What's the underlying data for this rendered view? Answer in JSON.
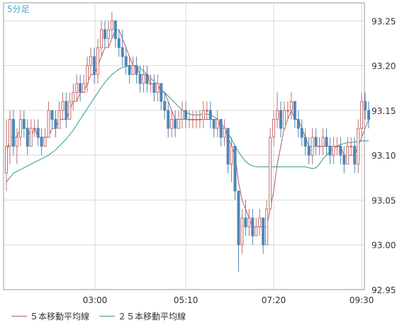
{
  "chart_data": {
    "type": "candlestick",
    "interval_label": "5分足",
    "x_tick_labels": [
      "03:00",
      "05:10",
      "07:20",
      "09:30"
    ],
    "y_tick_labels": [
      "93.25",
      "93.20",
      "93.15",
      "93.10",
      "93.05",
      "93.00",
      "92.95"
    ],
    "ylim": [
      92.95,
      93.27
    ],
    "grid": true,
    "legend_position": "bottom-left",
    "colors": {
      "up": "#c76d6d",
      "down": "#4f86b8",
      "ma5": "#b35d5d",
      "ma25": "#2f9c84",
      "grid": "#d9d9d9",
      "frame": "#9a9a9a",
      "label": "#333333",
      "interval": "#46a6c8"
    },
    "candles": [
      [
        93.08,
        93.14,
        93.06,
        93.11
      ],
      [
        93.11,
        93.15,
        93.09,
        93.14
      ],
      [
        93.14,
        93.15,
        93.1,
        93.11
      ],
      [
        93.11,
        93.13,
        93.09,
        93.12
      ],
      [
        93.12,
        93.15,
        93.11,
        93.14
      ],
      [
        93.14,
        93.15,
        93.12,
        93.13
      ],
      [
        93.13,
        93.14,
        93.1,
        93.11
      ],
      [
        93.11,
        93.14,
        93.11,
        93.13
      ],
      [
        93.13,
        93.14,
        93.12,
        93.13
      ],
      [
        93.13,
        93.14,
        93.11,
        93.12
      ],
      [
        93.12,
        93.13,
        93.1,
        93.11
      ],
      [
        93.11,
        93.13,
        93.11,
        93.12
      ],
      [
        93.12,
        93.16,
        93.12,
        93.15
      ],
      [
        93.15,
        93.15,
        93.13,
        93.14
      ],
      [
        93.14,
        93.15,
        93.12,
        93.13
      ],
      [
        93.13,
        93.16,
        93.13,
        93.15
      ],
      [
        93.15,
        93.17,
        93.14,
        93.16
      ],
      [
        93.16,
        93.17,
        93.13,
        93.14
      ],
      [
        93.14,
        93.17,
        93.14,
        93.16
      ],
      [
        93.16,
        93.18,
        93.15,
        93.17
      ],
      [
        93.17,
        93.19,
        93.16,
        93.18
      ],
      [
        93.18,
        93.19,
        93.16,
        93.17
      ],
      [
        93.17,
        93.19,
        93.17,
        93.18
      ],
      [
        93.18,
        93.21,
        93.17,
        93.2
      ],
      [
        93.2,
        93.22,
        93.19,
        93.21
      ],
      [
        93.21,
        93.22,
        93.18,
        93.19
      ],
      [
        93.19,
        93.23,
        93.18,
        93.22
      ],
      [
        93.22,
        93.25,
        93.21,
        93.24
      ],
      [
        93.24,
        93.25,
        93.22,
        93.23
      ],
      [
        93.23,
        93.25,
        93.22,
        93.24
      ],
      [
        93.24,
        93.26,
        93.23,
        93.25
      ],
      [
        93.25,
        93.25,
        93.22,
        93.23
      ],
      [
        93.23,
        93.24,
        93.21,
        93.22
      ],
      [
        93.22,
        93.24,
        93.2,
        93.21
      ],
      [
        93.21,
        93.22,
        93.19,
        93.2
      ],
      [
        93.2,
        93.21,
        93.18,
        93.19
      ],
      [
        93.19,
        93.21,
        93.19,
        93.2
      ],
      [
        93.2,
        93.21,
        93.18,
        93.19
      ],
      [
        93.19,
        93.2,
        93.17,
        93.18
      ],
      [
        93.18,
        93.2,
        93.17,
        93.19
      ],
      [
        93.19,
        93.2,
        93.17,
        93.18
      ],
      [
        93.18,
        93.19,
        93.17,
        93.18
      ],
      [
        93.18,
        93.19,
        93.16,
        93.17
      ],
      [
        93.17,
        93.19,
        93.16,
        93.18
      ],
      [
        93.18,
        93.18,
        93.15,
        93.16
      ],
      [
        93.16,
        93.17,
        93.14,
        93.15
      ],
      [
        93.15,
        93.16,
        93.12,
        93.13
      ],
      [
        93.13,
        93.15,
        93.12,
        93.14
      ],
      [
        93.14,
        93.15,
        93.12,
        93.13
      ],
      [
        93.13,
        93.15,
        93.13,
        93.14
      ],
      [
        93.14,
        93.16,
        93.13,
        93.15
      ],
      [
        93.15,
        93.16,
        93.13,
        93.14
      ],
      [
        93.14,
        93.15,
        93.13,
        93.14
      ],
      [
        93.14,
        93.15,
        93.13,
        93.14
      ],
      [
        93.14,
        93.15,
        93.13,
        93.14
      ],
      [
        93.14,
        93.15,
        93.13,
        93.14
      ],
      [
        93.14,
        93.16,
        93.13,
        93.15
      ],
      [
        93.15,
        93.16,
        93.14,
        93.15
      ],
      [
        93.15,
        93.16,
        93.13,
        93.14
      ],
      [
        93.14,
        93.14,
        93.12,
        93.13
      ],
      [
        93.13,
        93.15,
        93.12,
        93.14
      ],
      [
        93.14,
        93.14,
        93.11,
        93.12
      ],
      [
        93.12,
        93.14,
        93.11,
        93.13
      ],
      [
        93.13,
        93.13,
        93.08,
        93.09
      ],
      [
        93.09,
        93.12,
        93.07,
        93.11
      ],
      [
        93.11,
        93.11,
        93.05,
        93.06
      ],
      [
        93.06,
        93.06,
        92.97,
        93.0
      ],
      [
        93.0,
        93.04,
        92.99,
        93.03
      ],
      [
        93.03,
        93.05,
        93.01,
        93.02
      ],
      [
        93.02,
        93.04,
        93.01,
        93.03
      ],
      [
        93.03,
        93.04,
        93.0,
        93.01
      ],
      [
        93.01,
        93.03,
        93.01,
        93.02
      ],
      [
        93.02,
        93.04,
        93.01,
        93.03
      ],
      [
        93.03,
        93.03,
        92.99,
        93.0
      ],
      [
        93.0,
        93.05,
        93.0,
        93.04
      ],
      [
        93.04,
        93.13,
        93.04,
        93.12
      ],
      [
        93.12,
        93.15,
        93.11,
        93.14
      ],
      [
        93.14,
        93.17,
        93.13,
        93.15
      ],
      [
        93.15,
        93.16,
        93.12,
        93.13
      ],
      [
        93.13,
        93.16,
        93.13,
        93.15
      ],
      [
        93.15,
        93.16,
        93.14,
        93.15
      ],
      [
        93.15,
        93.17,
        93.14,
        93.16
      ],
      [
        93.16,
        93.16,
        93.13,
        93.14
      ],
      [
        93.14,
        93.15,
        93.12,
        93.13
      ],
      [
        93.13,
        93.14,
        93.11,
        93.12
      ],
      [
        93.12,
        93.13,
        93.1,
        93.11
      ],
      [
        93.11,
        93.12,
        93.09,
        93.1
      ],
      [
        93.1,
        93.13,
        93.09,
        93.12
      ],
      [
        93.12,
        93.13,
        93.1,
        93.11
      ],
      [
        93.11,
        93.12,
        93.1,
        93.11
      ],
      [
        93.11,
        93.13,
        93.1,
        93.12
      ],
      [
        93.12,
        93.13,
        93.1,
        93.11
      ],
      [
        93.11,
        93.12,
        93.09,
        93.1
      ],
      [
        93.1,
        93.12,
        93.09,
        93.11
      ],
      [
        93.11,
        93.12,
        93.1,
        93.11
      ],
      [
        93.11,
        93.12,
        93.09,
        93.1
      ],
      [
        93.1,
        93.11,
        93.08,
        93.09
      ],
      [
        93.09,
        93.12,
        93.09,
        93.11
      ],
      [
        93.11,
        93.12,
        93.1,
        93.11
      ],
      [
        93.11,
        93.12,
        93.08,
        93.09
      ],
      [
        93.09,
        93.14,
        93.08,
        93.13
      ],
      [
        93.13,
        93.17,
        93.12,
        93.16
      ],
      [
        93.16,
        93.17,
        93.14,
        93.15
      ],
      [
        93.15,
        93.16,
        93.13,
        93.14
      ]
    ],
    "ma5": [
      93.1,
      93.12,
      93.12,
      93.12,
      93.13,
      93.13,
      93.13,
      93.12,
      93.13,
      93.12,
      93.12,
      93.12,
      93.12,
      93.13,
      93.13,
      93.14,
      93.14,
      93.14,
      93.15,
      93.16,
      93.16,
      93.17,
      93.17,
      93.18,
      93.19,
      93.19,
      93.2,
      93.21,
      93.22,
      93.22,
      93.23,
      93.24,
      93.24,
      93.23,
      93.22,
      93.21,
      93.2,
      93.2,
      93.19,
      93.19,
      93.19,
      93.18,
      93.18,
      93.18,
      93.17,
      93.17,
      93.16,
      93.15,
      93.14,
      93.14,
      93.14,
      93.14,
      93.14,
      93.14,
      93.14,
      93.14,
      93.14,
      93.14,
      93.14,
      93.14,
      93.14,
      93.13,
      93.13,
      93.12,
      93.11,
      93.1,
      93.07,
      93.05,
      93.04,
      93.03,
      93.02,
      93.02,
      93.02,
      93.02,
      93.02,
      93.04,
      93.06,
      93.09,
      93.11,
      93.13,
      93.14,
      93.15,
      93.14,
      93.14,
      93.13,
      93.12,
      93.11,
      93.11,
      93.11,
      93.11,
      93.11,
      93.11,
      93.11,
      93.11,
      93.11,
      93.11,
      93.1,
      93.1,
      93.1,
      93.1,
      93.11,
      93.12,
      93.13,
      93.14
    ],
    "ma25": [
      93.07,
      93.075,
      93.08,
      93.082,
      93.084,
      93.086,
      93.088,
      93.09,
      93.092,
      93.094,
      93.096,
      93.098,
      93.1,
      93.103,
      93.106,
      93.11,
      93.114,
      93.118,
      93.123,
      93.128,
      93.134,
      93.14,
      93.146,
      93.152,
      93.158,
      93.164,
      93.17,
      93.176,
      93.181,
      93.186,
      93.19,
      93.193,
      93.196,
      93.198,
      93.199,
      93.2,
      93.2,
      93.199,
      93.197,
      93.194,
      93.19,
      93.186,
      93.182,
      93.178,
      93.174,
      93.17,
      93.166,
      93.162,
      93.158,
      93.154,
      93.15,
      93.148,
      93.146,
      93.145,
      93.145,
      93.145,
      93.146,
      93.146,
      93.145,
      93.143,
      93.14,
      93.136,
      93.13,
      93.124,
      93.118,
      93.11,
      93.104,
      93.098,
      93.093,
      93.09,
      93.088,
      93.087,
      93.087,
      93.087,
      93.087,
      93.087,
      93.087,
      93.087,
      93.087,
      93.087,
      93.087,
      93.087,
      93.087,
      93.087,
      93.087,
      93.087,
      93.086,
      93.085,
      93.086,
      93.09,
      93.096,
      93.1,
      93.104,
      93.107,
      93.11,
      93.112,
      93.113,
      93.114,
      93.114,
      93.115,
      93.115,
      93.116,
      93.116,
      93.116
    ],
    "legend": [
      {
        "label": "５本移動平均線",
        "color": "#b35d5d"
      },
      {
        "label": "２５本移動平均線",
        "color": "#2f9c84"
      }
    ]
  }
}
